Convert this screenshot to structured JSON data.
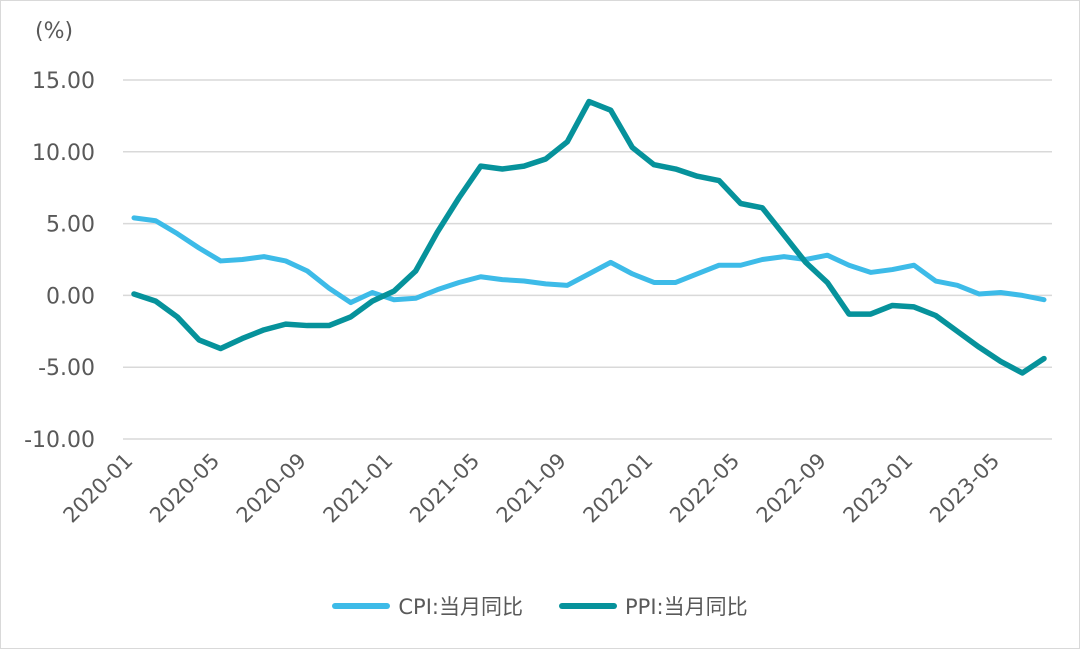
{
  "chart_data": {
    "type": "line",
    "unit_label": "(%)",
    "x": [
      "2020-01",
      "2020-02",
      "2020-03",
      "2020-04",
      "2020-05",
      "2020-06",
      "2020-07",
      "2020-08",
      "2020-09",
      "2020-10",
      "2020-11",
      "2020-12",
      "2021-01",
      "2021-02",
      "2021-03",
      "2021-04",
      "2021-05",
      "2021-06",
      "2021-07",
      "2021-08",
      "2021-09",
      "2021-10",
      "2021-11",
      "2021-12",
      "2022-01",
      "2022-02",
      "2022-03",
      "2022-04",
      "2022-05",
      "2022-06",
      "2022-07",
      "2022-08",
      "2022-09",
      "2022-10",
      "2022-11",
      "2022-12",
      "2023-01",
      "2023-02",
      "2023-03",
      "2023-04",
      "2023-05",
      "2023-06",
      "2023-07"
    ],
    "x_tick_labels": [
      "2020-01",
      "2020-05",
      "2020-09",
      "2021-01",
      "2021-05",
      "2021-09",
      "2022-01",
      "2022-05",
      "2022-09",
      "2023-01",
      "2023-05"
    ],
    "y_tick_labels": [
      "15.00",
      "10.00",
      "5.00",
      "0.00",
      "-5.00",
      "-10.00"
    ],
    "ylim": [
      -10,
      15
    ],
    "grid": "horizontal",
    "legend_position": "bottom",
    "series": [
      {
        "name": "CPI:当月同比",
        "color": "#3dbbe8",
        "values": [
          5.4,
          5.2,
          4.3,
          3.3,
          2.4,
          2.5,
          2.7,
          2.4,
          1.7,
          0.5,
          -0.5,
          0.2,
          -0.3,
          -0.2,
          0.4,
          0.9,
          1.3,
          1.1,
          1.0,
          0.8,
          0.7,
          1.5,
          2.3,
          1.5,
          0.9,
          0.9,
          1.5,
          2.1,
          2.1,
          2.5,
          2.7,
          2.5,
          2.8,
          2.1,
          1.6,
          1.8,
          2.1,
          1.0,
          0.7,
          0.1,
          0.2,
          0.0,
          -0.3
        ]
      },
      {
        "name": "PPI:当月同比",
        "color": "#06929b",
        "values": [
          0.1,
          -0.4,
          -1.5,
          -3.1,
          -3.7,
          -3.0,
          -2.4,
          -2.0,
          -2.1,
          -2.1,
          -1.5,
          -0.4,
          0.3,
          1.7,
          4.4,
          6.8,
          9.0,
          8.8,
          9.0,
          9.5,
          10.7,
          13.5,
          12.9,
          10.3,
          9.1,
          8.8,
          8.3,
          8.0,
          6.4,
          6.1,
          4.2,
          2.3,
          0.9,
          -1.3,
          -1.3,
          -0.7,
          -0.8,
          -1.4,
          -2.5,
          -3.6,
          -4.6,
          -5.4,
          -4.4
        ]
      }
    ]
  }
}
